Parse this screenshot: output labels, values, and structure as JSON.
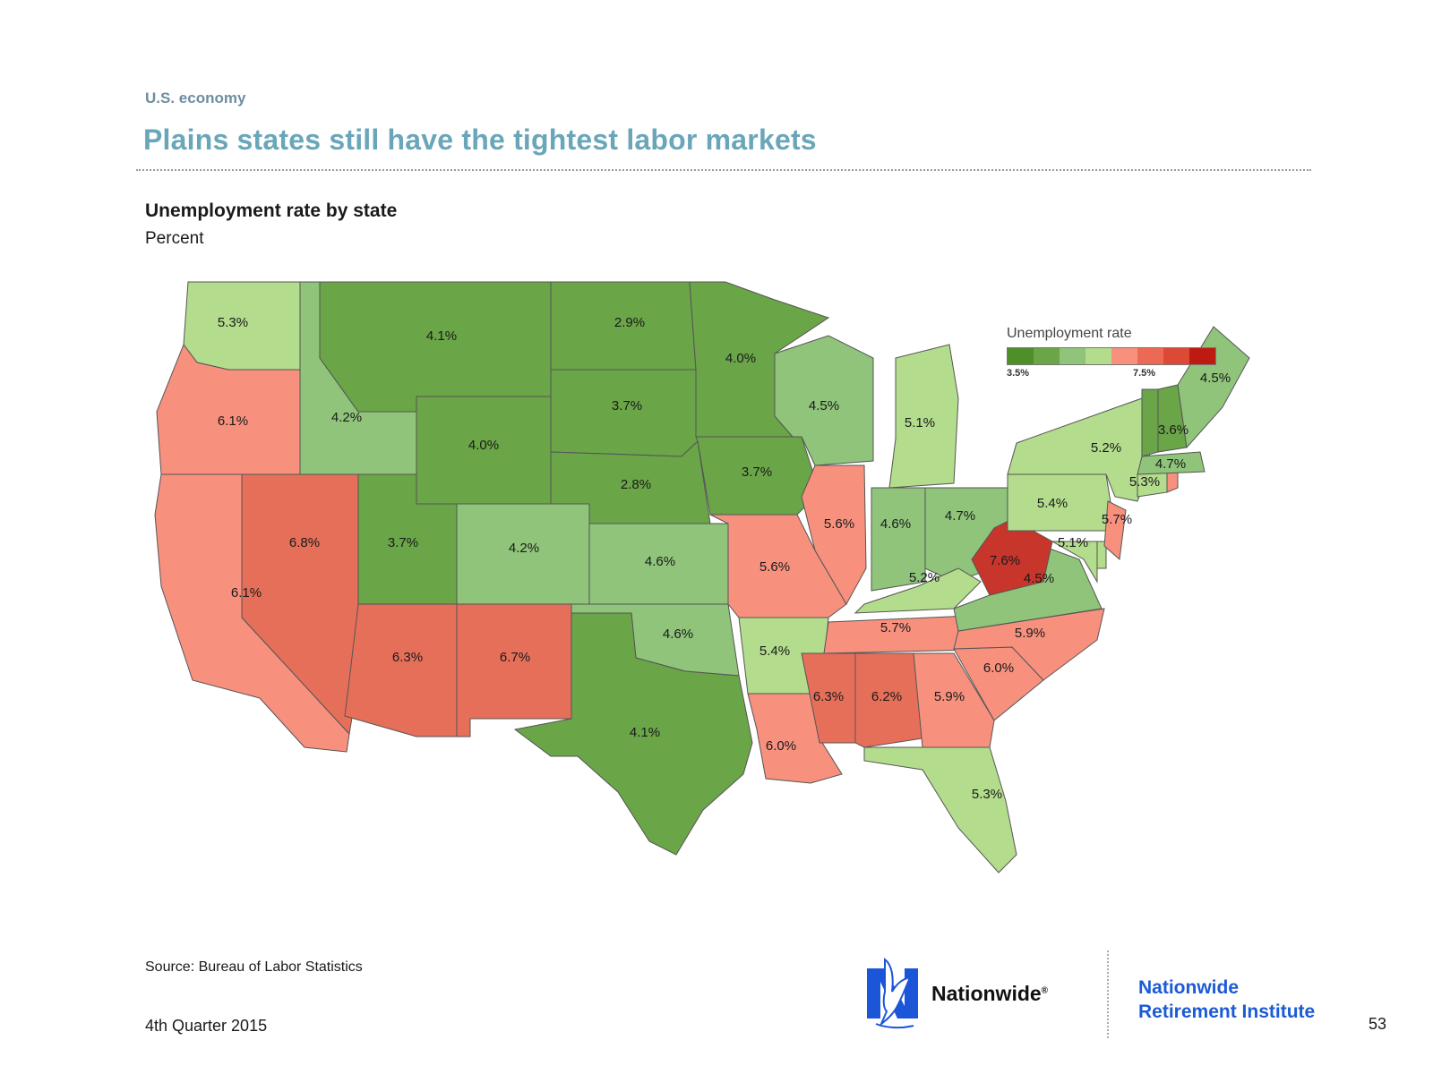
{
  "header": {
    "eyebrow": "U.S. economy",
    "title": "Plains states still have the tightest labor markets"
  },
  "chart": {
    "subtitle": "Unemployment rate by state",
    "units": "Percent"
  },
  "legend": {
    "title": "Unemployment rate",
    "min_label": "3.5%",
    "max_label": "7.5%",
    "colors": [
      "#4f8f2a",
      "#6aa548",
      "#8fc47a",
      "#b3dc8c",
      "#f7917e",
      "#ec6a55",
      "#dc4a35",
      "#bf1a12"
    ]
  },
  "map_data": {
    "type": "choropleth",
    "metric": "Unemployment rate",
    "unit": "%",
    "states": [
      {
        "id": "WA",
        "value": 5.3,
        "label": "5.3%",
        "color": "#b3dc8c"
      },
      {
        "id": "OR",
        "value": 6.1,
        "label": "6.1%",
        "color": "#f7917e"
      },
      {
        "id": "CA",
        "value": 6.1,
        "label": "6.1%",
        "color": "#f7917e"
      },
      {
        "id": "ID",
        "value": 4.2,
        "label": "4.2%",
        "color": "#8fc47a"
      },
      {
        "id": "NV",
        "value": 6.8,
        "label": "6.8%",
        "color": "#e66f5a"
      },
      {
        "id": "MT",
        "value": 4.1,
        "label": "4.1%",
        "color": "#6aa548"
      },
      {
        "id": "WY",
        "value": 4.0,
        "label": "4.0%",
        "color": "#6aa548"
      },
      {
        "id": "UT",
        "value": 3.7,
        "label": "3.7%",
        "color": "#6aa548"
      },
      {
        "id": "AZ",
        "value": 6.3,
        "label": "6.3%",
        "color": "#e66f5a"
      },
      {
        "id": "CO",
        "value": 4.2,
        "label": "4.2%",
        "color": "#8fc47a"
      },
      {
        "id": "NM",
        "value": 6.7,
        "label": "6.7%",
        "color": "#e66f5a"
      },
      {
        "id": "ND",
        "value": 2.9,
        "label": "2.9%",
        "color": "#6aa548"
      },
      {
        "id": "SD",
        "value": 3.7,
        "label": "3.7%",
        "color": "#6aa548"
      },
      {
        "id": "NE",
        "value": 2.8,
        "label": "2.8%",
        "color": "#6aa548"
      },
      {
        "id": "KS",
        "value": 4.6,
        "label": "4.6%",
        "color": "#8fc47a"
      },
      {
        "id": "OK",
        "value": 4.6,
        "label": "4.6%",
        "color": "#8fc47a"
      },
      {
        "id": "TX",
        "value": 4.1,
        "label": "4.1%",
        "color": "#6aa548"
      },
      {
        "id": "MN",
        "value": 4.0,
        "label": "4.0%",
        "color": "#6aa548"
      },
      {
        "id": "IA",
        "value": 3.7,
        "label": "3.7%",
        "color": "#6aa548"
      },
      {
        "id": "MO",
        "value": 5.6,
        "label": "5.6%",
        "color": "#f7917e"
      },
      {
        "id": "AR",
        "value": 5.4,
        "label": "5.4%",
        "color": "#b3dc8c"
      },
      {
        "id": "LA",
        "value": 6.0,
        "label": "6.0%",
        "color": "#f7917e"
      },
      {
        "id": "WI",
        "value": 4.5,
        "label": "4.5%",
        "color": "#8fc47a"
      },
      {
        "id": "IL",
        "value": 5.6,
        "label": "5.6%",
        "color": "#f7917e"
      },
      {
        "id": "MI",
        "value": 5.1,
        "label": "5.1%",
        "color": "#b3dc8c"
      },
      {
        "id": "IN",
        "value": 4.6,
        "label": "4.6%",
        "color": "#8fc47a"
      },
      {
        "id": "OH",
        "value": 4.7,
        "label": "4.7%",
        "color": "#8fc47a"
      },
      {
        "id": "KY",
        "value": 5.2,
        "label": "5.2%",
        "color": "#b3dc8c"
      },
      {
        "id": "TN",
        "value": 5.7,
        "label": "5.7%",
        "color": "#f7917e"
      },
      {
        "id": "MS",
        "value": 6.3,
        "label": "6.3%",
        "color": "#e66f5a"
      },
      {
        "id": "AL",
        "value": 6.2,
        "label": "6.2%",
        "color": "#e66f5a"
      },
      {
        "id": "GA",
        "value": 5.9,
        "label": "5.9%",
        "color": "#f7917e"
      },
      {
        "id": "FL",
        "value": 5.3,
        "label": "5.3%",
        "color": "#b3dc8c"
      },
      {
        "id": "SC",
        "value": 6.0,
        "label": "6.0%",
        "color": "#f7917e"
      },
      {
        "id": "NC",
        "value": 5.9,
        "label": "5.9%",
        "color": "#f7917e"
      },
      {
        "id": "VA",
        "value": 4.5,
        "label": "4.5%",
        "color": "#8fc47a"
      },
      {
        "id": "WV",
        "value": 7.6,
        "label": "7.6%",
        "color": "#c8352a"
      },
      {
        "id": "MD",
        "value": 5.1,
        "label": "5.1%",
        "color": "#b3dc8c"
      },
      {
        "id": "DE",
        "value": null,
        "label": "",
        "color": "#b3dc8c"
      },
      {
        "id": "PA",
        "value": 5.4,
        "label": "5.4%",
        "color": "#b3dc8c"
      },
      {
        "id": "NJ",
        "value": 5.7,
        "label": "5.7%",
        "color": "#f7917e"
      },
      {
        "id": "NY",
        "value": 5.2,
        "label": "5.2%",
        "color": "#b3dc8c"
      },
      {
        "id": "CT",
        "value": 5.3,
        "label": "5.3%",
        "color": "#b3dc8c"
      },
      {
        "id": "RI",
        "value": null,
        "label": "",
        "color": "#f7917e"
      },
      {
        "id": "MA",
        "value": 4.7,
        "label": "4.7%",
        "color": "#8fc47a"
      },
      {
        "id": "VT",
        "value": 3.6,
        "label": "",
        "color": "#6aa548"
      },
      {
        "id": "NH",
        "value": 3.6,
        "label": "3.6%",
        "color": "#6aa548"
      },
      {
        "id": "ME",
        "value": 4.5,
        "label": "4.5%",
        "color": "#8fc47a"
      }
    ]
  },
  "footer": {
    "source": "Source: Bureau of Labor Statistics",
    "quarter": "4th Quarter 2015",
    "brand": "Nationwide",
    "brand_mark": "®",
    "institute_line1": "Nationwide",
    "institute_line2": "Retirement Institute",
    "page_number": "53"
  }
}
